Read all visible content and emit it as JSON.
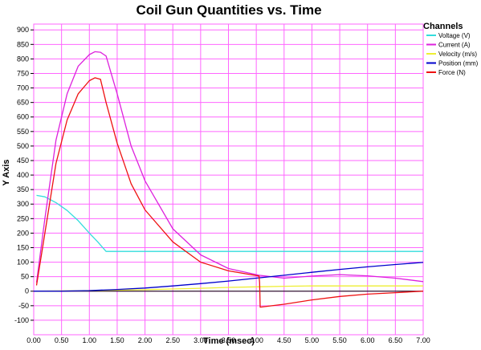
{
  "chart_data": {
    "type": "line",
    "title": "Coil Gun Quantities vs. Time",
    "xlabel": "Time (msec)",
    "ylabel": "Y Axis",
    "xlim": [
      0,
      7
    ],
    "ylim": [
      -150,
      920
    ],
    "x_ticks": [
      "0.00",
      "0.50",
      "1.00",
      "1.50",
      "2.00",
      "2.50",
      "3.00",
      "3.50",
      "4.00",
      "4.50",
      "5.00",
      "5.50",
      "6.00",
      "6.50",
      "7.00"
    ],
    "y_ticks": [
      "900",
      "850",
      "800",
      "750",
      "700",
      "650",
      "600",
      "550",
      "500",
      "450",
      "400",
      "350",
      "300",
      "250",
      "200",
      "150",
      "100",
      "50",
      "0",
      "-50",
      "-100"
    ],
    "grid": true,
    "legend_title": "Channels",
    "legend_position": "right",
    "colors": {
      "grid": "#ff66ff",
      "zero_line": "#000000"
    },
    "series": [
      {
        "name": "Voltage (V)",
        "color": "#33dddd",
        "x": [
          0.05,
          0.2,
          0.4,
          0.6,
          0.8,
          1.0,
          1.15,
          1.3,
          2.0,
          3.0,
          4.0,
          5.0,
          6.0,
          7.0
        ],
        "y": [
          330,
          325,
          305,
          278,
          243,
          200,
          170,
          137,
          137,
          137,
          137,
          137,
          137,
          137
        ]
      },
      {
        "name": "Current (A)",
        "color": "#dd22dd",
        "x": [
          0.05,
          0.2,
          0.4,
          0.6,
          0.8,
          1.0,
          1.1,
          1.2,
          1.3,
          1.5,
          1.75,
          2.0,
          2.5,
          3.0,
          3.5,
          4.05,
          4.5,
          5.0,
          5.5,
          6.0,
          6.5,
          7.0
        ],
        "y": [
          30,
          250,
          520,
          680,
          775,
          815,
          825,
          823,
          810,
          680,
          500,
          380,
          215,
          125,
          78,
          55,
          45,
          52,
          57,
          53,
          45,
          33
        ]
      },
      {
        "name": "Velocity (m/s)",
        "color": "#eeee33",
        "x": [
          0,
          1.0,
          2.0,
          3.0,
          3.5,
          4.0,
          4.5,
          5.0,
          6.0,
          7.0
        ],
        "y": [
          0,
          2,
          5,
          10,
          13,
          15,
          17,
          18,
          18,
          18
        ]
      },
      {
        "name": "Position (mm)",
        "color": "#0000cc",
        "x": [
          0,
          0.5,
          1.0,
          1.5,
          2.0,
          2.5,
          3.0,
          3.5,
          4.0,
          4.5,
          5.0,
          5.5,
          6.0,
          6.5,
          7.0
        ],
        "y": [
          0,
          0.5,
          2,
          6,
          11,
          18,
          26,
          35,
          45,
          55,
          65,
          75,
          84,
          92,
          99
        ]
      },
      {
        "name": "Force (N)",
        "color": "#ee1111",
        "x": [
          0.05,
          0.2,
          0.4,
          0.6,
          0.8,
          1.0,
          1.1,
          1.2,
          1.3,
          1.5,
          1.75,
          2.0,
          2.5,
          3.0,
          3.5,
          4.05,
          4.06,
          4.07,
          4.5,
          5.0,
          5.5,
          6.0,
          6.5,
          7.0
        ],
        "y": [
          20,
          200,
          440,
          590,
          680,
          725,
          735,
          730,
          650,
          510,
          370,
          280,
          170,
          100,
          70,
          52,
          30,
          -55,
          -45,
          -30,
          -18,
          -10,
          -5,
          0
        ]
      }
    ]
  }
}
